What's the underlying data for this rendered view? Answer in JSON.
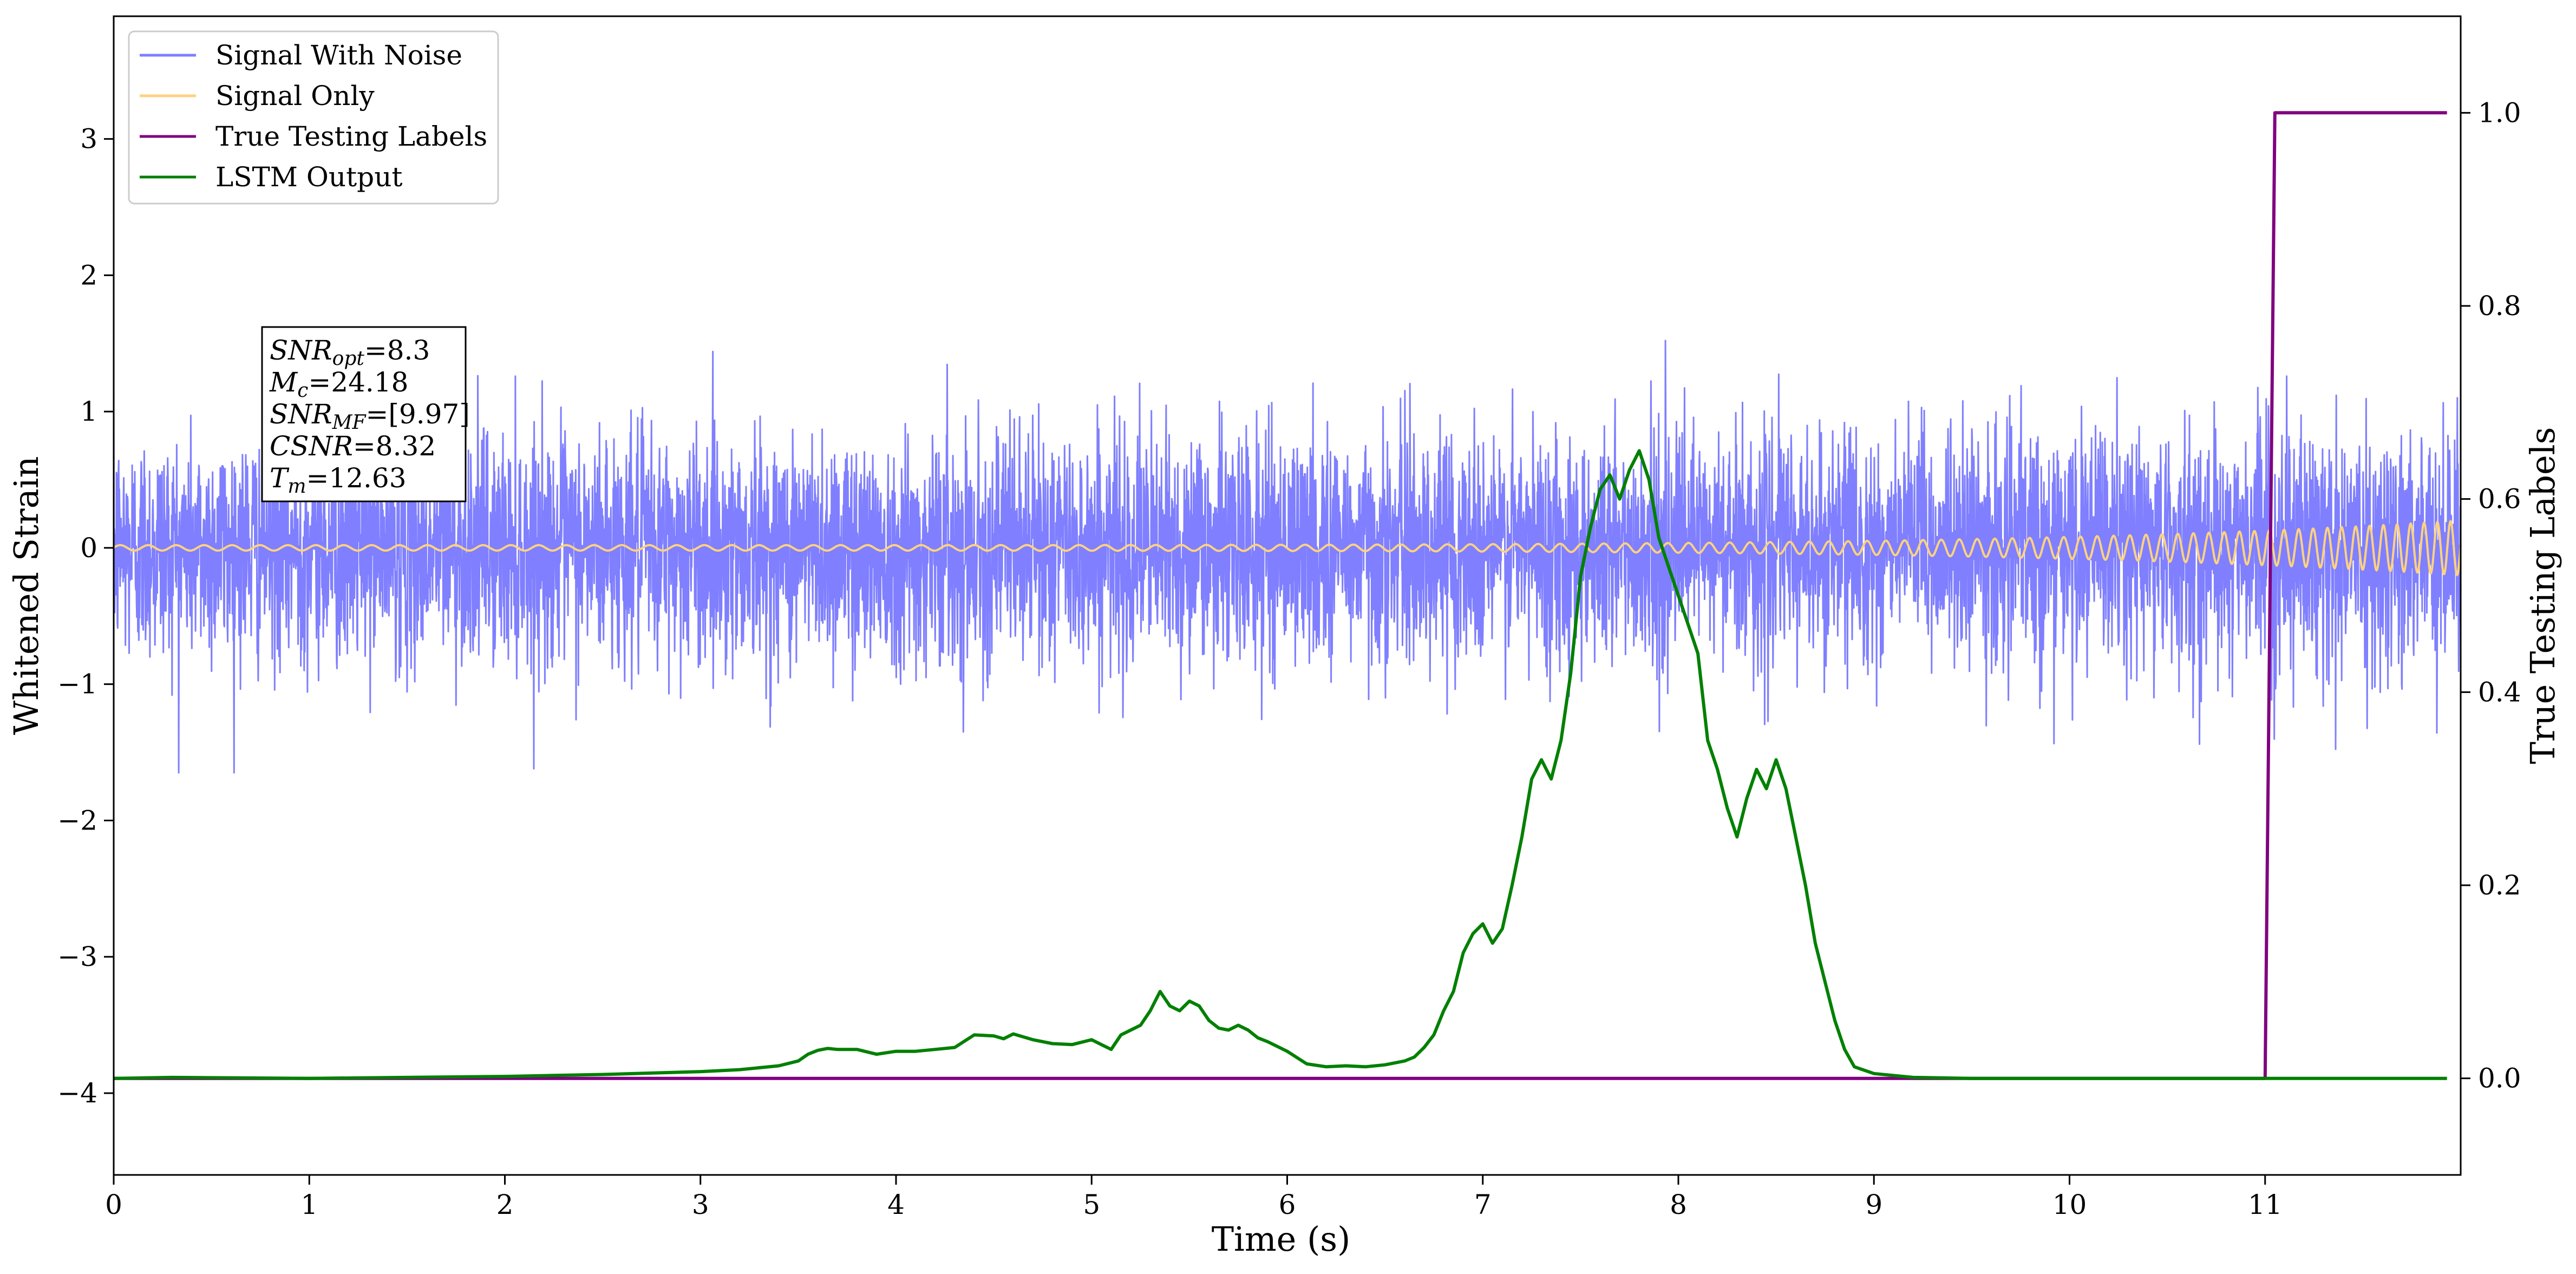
{
  "chart_data": {
    "type": "line",
    "xlabel": "Time (s)",
    "ylabel_left": "Whitened Strain",
    "ylabel_right": "True Testing Labels",
    "xlim": [
      0,
      12
    ],
    "ylim_left": [
      -4.6,
      3.9
    ],
    "ylim_right": [
      -0.1,
      1.1
    ],
    "x_ticks": [
      0,
      1,
      2,
      3,
      4,
      5,
      6,
      7,
      8,
      9,
      10,
      11
    ],
    "x_tick_labels": [
      "0",
      "1",
      "2",
      "3",
      "4",
      "5",
      "6",
      "7",
      "8",
      "9",
      "10",
      "11"
    ],
    "y_left_ticks": [
      -4,
      -3,
      -2,
      -1,
      0,
      1,
      2,
      3
    ],
    "y_left_tick_labels": [
      "−4",
      "−3",
      "−2",
      "−1",
      "0",
      "1",
      "2",
      "3"
    ],
    "y_right_ticks": [
      0,
      0.2,
      0.4,
      0.6,
      0.8,
      1.0
    ],
    "y_right_tick_labels": [
      "0.0",
      "0.2",
      "0.4",
      "0.6",
      "0.8",
      "1.0"
    ],
    "grid": false,
    "legend_position": "top-left",
    "annotation_lines": [
      {
        "base": "SNR",
        "sub": "opt",
        "value": "=8.3"
      },
      {
        "base": "M",
        "sub": "c",
        "value": "=24.18"
      },
      {
        "base": "SNR",
        "sub": "MF",
        "value": "=[9.97]"
      },
      {
        "base": "CSNR",
        "sub": "",
        "value": "=8.32"
      },
      {
        "base": "T",
        "sub": "m",
        "value": "=12.63"
      }
    ],
    "series": [
      {
        "name": "Signal With Noise",
        "color": "#7f7fff",
        "axis": "left",
        "kind": "noise",
        "typical_range": [
          -1.0,
          1.0
        ],
        "extremes": [
          -1.65,
          1.8
        ]
      },
      {
        "name": "Signal Only",
        "color": "#ffd27f",
        "axis": "left",
        "kind": "chirp",
        "amplitude_start": 0.02,
        "amplitude_end": 0.2
      },
      {
        "name": "True Testing Labels",
        "color": "#800080",
        "axis": "right",
        "x": [
          0,
          11.0,
          11.05,
          11.93
        ],
        "y": [
          0,
          0,
          1,
          1
        ]
      },
      {
        "name": "LSTM Output",
        "color": "#008000",
        "axis": "right",
        "x": [
          0,
          0.3,
          1,
          1.5,
          2,
          2.5,
          3,
          3.2,
          3.4,
          3.5,
          3.55,
          3.6,
          3.65,
          3.7,
          3.8,
          3.9,
          4.0,
          4.1,
          4.2,
          4.3,
          4.4,
          4.5,
          4.55,
          4.6,
          4.7,
          4.8,
          4.9,
          5.0,
          5.05,
          5.1,
          5.15,
          5.2,
          5.25,
          5.3,
          5.35,
          5.4,
          5.45,
          5.5,
          5.55,
          5.6,
          5.65,
          5.7,
          5.75,
          5.8,
          5.85,
          5.9,
          6.0,
          6.1,
          6.2,
          6.3,
          6.4,
          6.5,
          6.6,
          6.65,
          6.7,
          6.75,
          6.8,
          6.85,
          6.9,
          6.95,
          7.0,
          7.05,
          7.1,
          7.15,
          7.2,
          7.25,
          7.3,
          7.35,
          7.4,
          7.45,
          7.5,
          7.55,
          7.6,
          7.65,
          7.7,
          7.75,
          7.8,
          7.85,
          7.9,
          7.95,
          8.0,
          8.05,
          8.1,
          8.15,
          8.2,
          8.25,
          8.3,
          8.35,
          8.4,
          8.45,
          8.5,
          8.55,
          8.6,
          8.65,
          8.7,
          8.75,
          8.8,
          8.85,
          8.9,
          9.0,
          9.2,
          9.5,
          10,
          11,
          11.93
        ],
        "y": [
          0.0,
          0.001,
          0.0,
          0.001,
          0.002,
          0.004,
          0.007,
          0.009,
          0.013,
          0.018,
          0.025,
          0.029,
          0.031,
          0.03,
          0.03,
          0.025,
          0.028,
          0.028,
          0.03,
          0.032,
          0.045,
          0.044,
          0.041,
          0.046,
          0.04,
          0.036,
          0.035,
          0.04,
          0.035,
          0.03,
          0.045,
          0.05,
          0.055,
          0.07,
          0.09,
          0.075,
          0.07,
          0.08,
          0.075,
          0.06,
          0.052,
          0.05,
          0.055,
          0.05,
          0.042,
          0.038,
          0.028,
          0.015,
          0.012,
          0.013,
          0.012,
          0.014,
          0.018,
          0.022,
          0.032,
          0.045,
          0.07,
          0.09,
          0.13,
          0.15,
          0.16,
          0.14,
          0.155,
          0.2,
          0.25,
          0.31,
          0.33,
          0.31,
          0.35,
          0.42,
          0.52,
          0.57,
          0.61,
          0.625,
          0.6,
          0.63,
          0.65,
          0.62,
          0.56,
          0.53,
          0.5,
          0.47,
          0.44,
          0.35,
          0.32,
          0.28,
          0.25,
          0.29,
          0.32,
          0.3,
          0.33,
          0.3,
          0.25,
          0.2,
          0.14,
          0.1,
          0.06,
          0.03,
          0.012,
          0.005,
          0.001,
          0.0,
          0.0,
          0.0,
          0.0
        ]
      }
    ]
  }
}
